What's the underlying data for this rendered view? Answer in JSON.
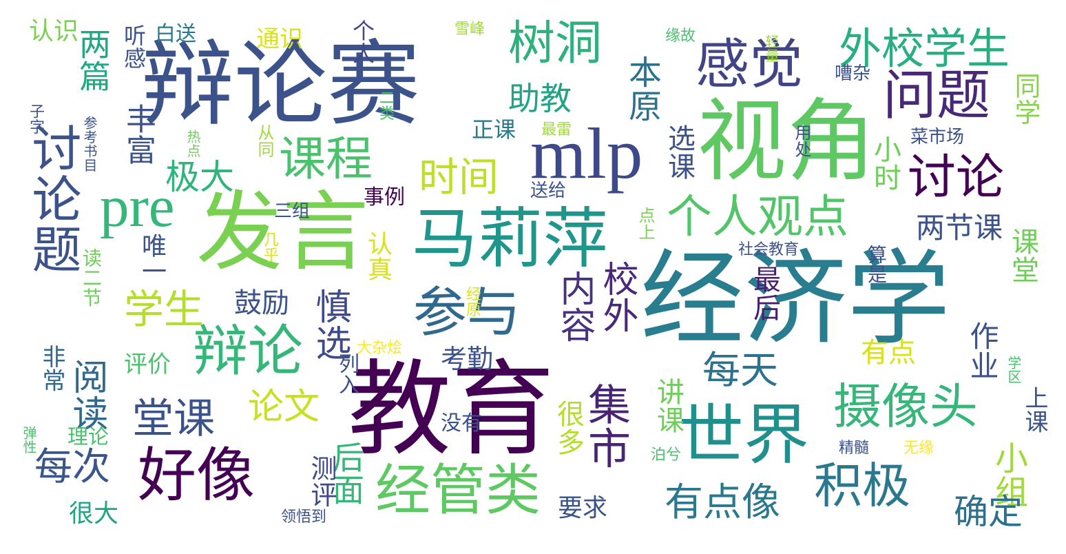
{
  "words": [
    {
      "text": "经济学",
      "color": "#287d8e"
    },
    {
      "text": "教育",
      "color": "#440154"
    },
    {
      "text": "辩论赛",
      "color": "#3b528b"
    },
    {
      "text": "发言",
      "color": "#7ad151"
    },
    {
      "text": "视角",
      "color": "#5ec962"
    },
    {
      "text": "mlp",
      "color": "#3e4989"
    },
    {
      "text": "马莉萍",
      "color": "#1f968b"
    },
    {
      "text": "世界",
      "color": "#21908d"
    },
    {
      "text": "好像",
      "color": "#440154"
    },
    {
      "text": "经管类",
      "color": "#5ec962"
    },
    {
      "text": "辩论",
      "color": "#35b779"
    },
    {
      "text": "参与",
      "color": "#31688e"
    },
    {
      "text": "感觉",
      "color": "#414487"
    },
    {
      "text": "问题",
      "color": "#482878"
    },
    {
      "text": "讨论题",
      "color": "#3b528b"
    },
    {
      "text": "pre",
      "color": "#35b779"
    },
    {
      "text": "课程",
      "color": "#4ac16d"
    },
    {
      "text": "树洞",
      "color": "#2db27d"
    },
    {
      "text": "讨论",
      "color": "#440154"
    },
    {
      "text": "摄像头",
      "color": "#35b779"
    },
    {
      "text": "积极",
      "color": "#2a788e"
    },
    {
      "text": "个人观点",
      "color": "#52c569"
    },
    {
      "text": "外校学生",
      "color": "#29af7f"
    },
    {
      "text": "时间",
      "color": "#bddf26"
    },
    {
      "text": "学生",
      "color": "#b5de2b"
    },
    {
      "text": "堂课",
      "color": "#3b528b"
    },
    {
      "text": "每次",
      "color": "#39568c"
    },
    {
      "text": "有点像",
      "color": "#2a788e"
    },
    {
      "text": "集市",
      "color": "#482475"
    },
    {
      "text": "慎选",
      "color": "#3e4a89"
    },
    {
      "text": "每天",
      "color": "#2c728e"
    },
    {
      "text": "内容",
      "color": "#46327e"
    },
    {
      "text": "校外",
      "color": "#482878"
    },
    {
      "text": "极大",
      "color": "#2fb47c"
    },
    {
      "text": "论文",
      "color": "#c8e020"
    },
    {
      "text": "阅读",
      "color": "#31688e"
    },
    {
      "text": "小组",
      "color": "#a0da39"
    },
    {
      "text": "确定",
      "color": "#2d708e"
    },
    {
      "text": "两篇",
      "color": "#22a884"
    },
    {
      "text": "丰富",
      "color": "#3b528b"
    },
    {
      "text": "助教",
      "color": "#20a486"
    },
    {
      "text": "本原",
      "color": "#2c728e"
    },
    {
      "text": "鼓励",
      "color": "#3b528b"
    },
    {
      "text": "两节课",
      "color": "#3b528b"
    },
    {
      "text": "选课",
      "color": "#3b528b"
    },
    {
      "text": "小时",
      "color": "#6ece58"
    },
    {
      "text": "后面",
      "color": "#35b779"
    },
    {
      "text": "很多",
      "color": "#b5de2b"
    },
    {
      "text": "讲课",
      "color": "#6ece58"
    },
    {
      "text": "有点",
      "color": "#d8e219"
    },
    {
      "text": "最后",
      "color": "#481f70"
    },
    {
      "text": "作业",
      "color": "#3b528b"
    },
    {
      "text": "课堂",
      "color": "#6ece58"
    },
    {
      "text": "同学",
      "color": "#86d549"
    },
    {
      "text": "评价",
      "color": "#4ac16d"
    },
    {
      "text": "考勤",
      "color": "#3b528b"
    },
    {
      "text": "测评",
      "color": "#3e4989"
    },
    {
      "text": "认真",
      "color": "#d8e219"
    },
    {
      "text": "唯一",
      "color": "#3b528b"
    },
    {
      "text": "正课",
      "color": "#2a788e"
    },
    {
      "text": "事例",
      "color": "#440154"
    },
    {
      "text": "三组",
      "color": "#3b528b"
    },
    {
      "text": "要求",
      "color": "#3b528b"
    },
    {
      "text": "很大",
      "color": "#20a486"
    },
    {
      "text": "非常",
      "color": "#31688e"
    },
    {
      "text": "读二节",
      "color": "#6ece58"
    },
    {
      "text": "理论",
      "color": "#4ac16d"
    },
    {
      "text": "认识",
      "color": "#7ad151"
    },
    {
      "text": "通识",
      "color": "#dae319"
    },
    {
      "text": "个人",
      "color": "#414487"
    },
    {
      "text": "听感",
      "color": "#3b528b"
    },
    {
      "text": "白送",
      "color": "#2a788e"
    },
    {
      "text": "没有",
      "color": "#3b528b"
    },
    {
      "text": "列入",
      "color": "#3b528b"
    },
    {
      "text": "送给",
      "color": "#3b528b"
    },
    {
      "text": "上课",
      "color": "#3b528b"
    },
    {
      "text": "雪峰",
      "color": "#a0da39"
    },
    {
      "text": "缘故",
      "color": "#4ac16d"
    },
    {
      "text": "嘈杂",
      "color": "#3b528b"
    },
    {
      "text": "菜市场",
      "color": "#3b528b"
    },
    {
      "text": "社会教育",
      "color": "#3b528b"
    },
    {
      "text": "精髓",
      "color": "#3b528b"
    },
    {
      "text": "无缘",
      "color": "#fde725"
    },
    {
      "text": "领悟到",
      "color": "#3b528b"
    },
    {
      "text": "大杂烩",
      "color": "#fde725"
    },
    {
      "text": "最雷",
      "color": "#a0da39"
    },
    {
      "text": "热点",
      "color": "#6ece58"
    },
    {
      "text": "几乎",
      "color": "#dae319"
    },
    {
      "text": "经原",
      "color": "#dae319"
    },
    {
      "text": "用处",
      "color": "#3b528b"
    },
    {
      "text": "算是",
      "color": "#3b528b"
    },
    {
      "text": "点上",
      "color": "#7ad151"
    },
    {
      "text": "学区",
      "color": "#4ac16d"
    },
    {
      "text": "泊兮",
      "color": "#4ac16d"
    },
    {
      "text": "弹性",
      "color": "#4ac16d"
    },
    {
      "text": "参考书目",
      "color": "#3b528b"
    },
    {
      "text": "子字",
      "color": "#3b528b"
    },
    {
      "text": "从同",
      "color": "#a0da39"
    },
    {
      "text": "二类",
      "color": "#4ac16d"
    },
    {
      "text": "轻量",
      "color": "#a0da39"
    }
  ]
}
